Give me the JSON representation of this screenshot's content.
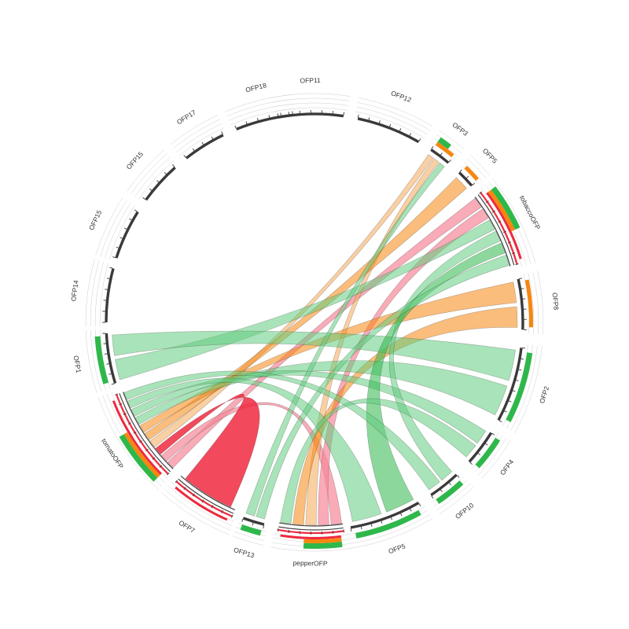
{
  "title": "",
  "colors": {
    "red": "#F0293F",
    "pink": "#F78898",
    "orange": "#F7860F",
    "light_orange": "#F5A855",
    "green": "#2EB84A",
    "light_green": "#62CC80",
    "arc": "#3A3A3A",
    "guide": "#CFCFCF"
  },
  "segments": [
    {
      "id": "s_ofp11",
      "label": "OFP11"
    },
    {
      "id": "s_ofp12",
      "label": "OFP12"
    },
    {
      "id": "s_ofp3",
      "label": "OFP3"
    },
    {
      "id": "s_ofp5a",
      "label": "OFP5"
    },
    {
      "id": "s_tobacco",
      "label": "tobaccoOFP"
    },
    {
      "id": "s_ofp8",
      "label": "OFP8"
    },
    {
      "id": "s_ofp2",
      "label": "OFP2"
    },
    {
      "id": "s_ofp4",
      "label": "OFP4"
    },
    {
      "id": "s_ofp10",
      "label": "OFP10"
    },
    {
      "id": "s_ofp5b",
      "label": "OFP5"
    },
    {
      "id": "s_pepper",
      "label": "pepperOFP"
    },
    {
      "id": "s_ofp13",
      "label": "OFP13"
    },
    {
      "id": "s_ofp7",
      "label": "OFP7"
    },
    {
      "id": "s_tomato",
      "label": "tomatoOFP"
    },
    {
      "id": "s_ofp1",
      "label": "OFP1"
    },
    {
      "id": "s_ofp14",
      "label": "OFP14"
    },
    {
      "id": "s_ofp15a",
      "label": "OFP15"
    },
    {
      "id": "s_ofp15b",
      "label": "OFP15"
    },
    {
      "id": "s_ofp17",
      "label": "OFP17"
    },
    {
      "id": "s_ofp18",
      "label": "OFP18"
    }
  ],
  "links": [
    {
      "source": "s_tomato",
      "target": "s_tobacco",
      "color": "pink"
    },
    {
      "source": "s_tomato",
      "target": "s_pepper",
      "color": "pink"
    },
    {
      "source": "s_tobacco",
      "target": "s_pepper",
      "color": "pink"
    },
    {
      "source": "s_ofp7",
      "target": "s_tomato",
      "color": "red"
    },
    {
      "source": "s_ofp3",
      "target": "s_tomato",
      "color": "light_orange"
    },
    {
      "source": "s_ofp3",
      "target": "s_pepper",
      "color": "light_orange"
    },
    {
      "source": "s_ofp5a",
      "target": "s_tomato",
      "color": "orange"
    },
    {
      "source": "s_ofp8",
      "target": "s_tomato",
      "color": "orange"
    },
    {
      "source": "s_ofp8",
      "target": "s_pepper",
      "color": "orange"
    },
    {
      "source": "s_ofp1",
      "target": "s_tobacco",
      "color": "light_green"
    },
    {
      "source": "s_ofp1",
      "target": "s_ofp2",
      "color": "light_green"
    },
    {
      "source": "s_ofp2",
      "target": "s_tomato",
      "color": "light_green"
    },
    {
      "source": "s_ofp4",
      "target": "s_tomato",
      "color": "light_green"
    },
    {
      "source": "s_ofp10",
      "target": "s_tobacco",
      "color": "light_green"
    },
    {
      "source": "s_ofp5b",
      "target": "s_tobacco",
      "color": "green"
    },
    {
      "source": "s_ofp5b",
      "target": "s_tomato",
      "color": "light_green"
    },
    {
      "source": "s_ofp13",
      "target": "s_tobacco",
      "color": "light_green"
    },
    {
      "source": "s_ofp13",
      "target": "s_ofp3",
      "color": "light_green"
    },
    {
      "source": "s_pepper",
      "target": "s_ofp4",
      "color": "light_green"
    },
    {
      "source": "s_ofp10",
      "target": "s_tomato",
      "color": "light_green"
    }
  ]
}
